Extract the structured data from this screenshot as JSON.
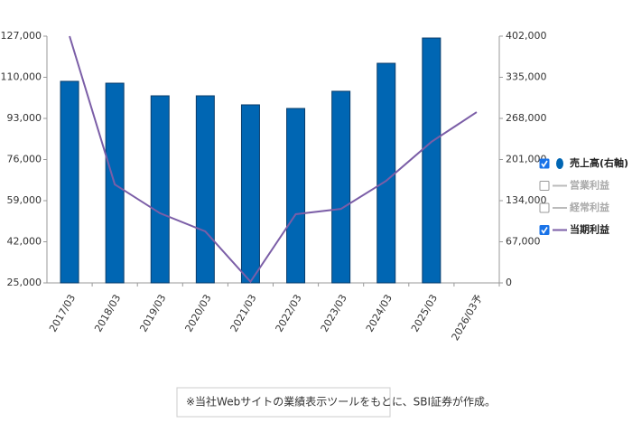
{
  "chart_data": {
    "type": "bar-line",
    "categories": [
      "2017/03",
      "2018/03",
      "2019/03",
      "2020/03",
      "2021/03",
      "2022/03",
      "2023/03",
      "2024/03",
      "2025/03",
      "2026/03予"
    ],
    "series": [
      {
        "name": "売上高(右軸)",
        "type": "bar",
        "axis": "y2",
        "color": "#0066b3",
        "checked": true,
        "values": [
          328400,
          325400,
          304800,
          304800,
          290100,
          284200,
          312200,
          357800,
          399000,
          null
        ]
      },
      {
        "name": "営業利益",
        "type": "line",
        "color": "#bbbbbb",
        "checked": false,
        "values": [
          null,
          null,
          null,
          null,
          null,
          null,
          null,
          null,
          null,
          null
        ]
      },
      {
        "name": "経常利益",
        "type": "line",
        "color": "#bbbbbb",
        "checked": false,
        "values": [
          null,
          null,
          null,
          null,
          null,
          null,
          null,
          null,
          null,
          null
        ]
      },
      {
        "name": "当期利益",
        "type": "line",
        "color": "#7b5ea7",
        "checked": true,
        "values": [
          127000,
          65700,
          53800,
          46300,
          25500,
          53400,
          55600,
          67200,
          83300,
          95600
        ]
      }
    ],
    "ylim": [
      25000,
      127000
    ],
    "yticks": [
      {
        "value": 25000,
        "label": "25,000"
      },
      {
        "value": 42000,
        "label": "42,000"
      },
      {
        "value": 59000,
        "label": "59,000"
      },
      {
        "value": 76000,
        "label": "76,000"
      },
      {
        "value": 93000,
        "label": "93,000"
      },
      {
        "value": 110000,
        "label": "110,000"
      },
      {
        "value": 127000,
        "label": "127,000"
      }
    ],
    "y2lim": [
      0,
      402000
    ],
    "y2ticks": [
      0,
      {
        "value": 67000,
        "label": "67,000"
      },
      {
        "value": 134000,
        "label": "134,000"
      },
      {
        "value": 201000,
        "label": "201,000"
      },
      {
        "value": 268000,
        "label": "268,000"
      },
      {
        "value": 335000,
        "label": "335,000"
      },
      {
        "value": 402000,
        "label": "402,000"
      }
    ],
    "note": "※当社Webサイトの業績表示ツールをもとに、SBI証券が作成。"
  }
}
